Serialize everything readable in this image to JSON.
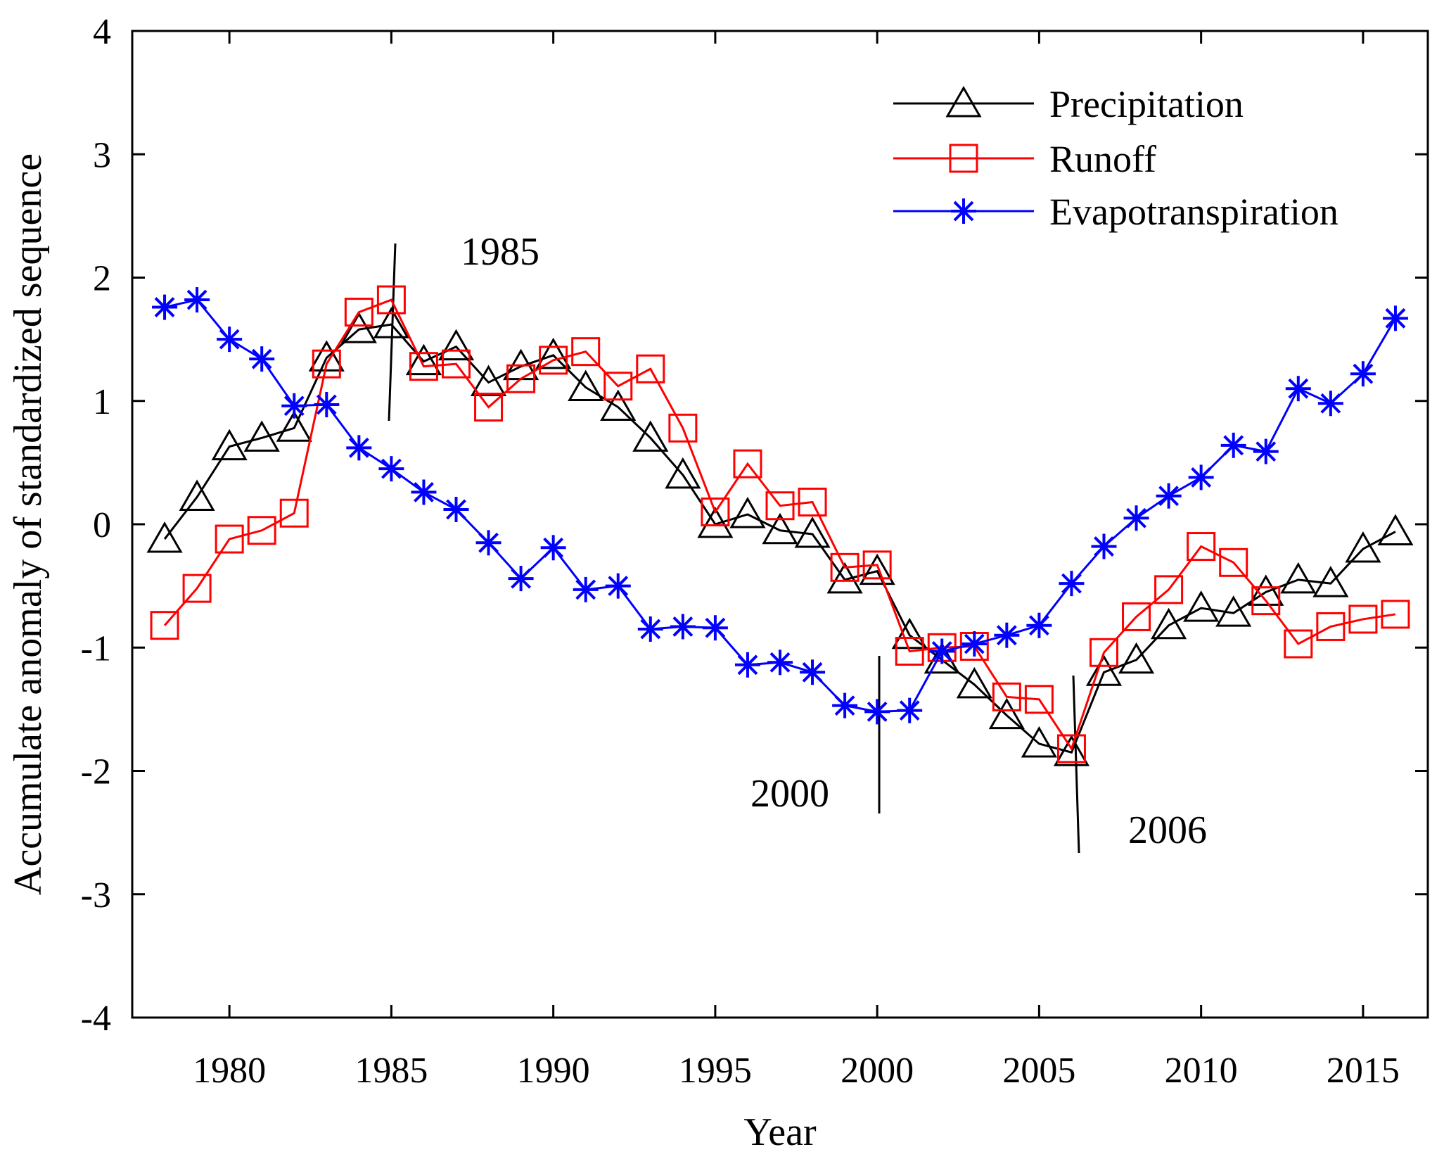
{
  "chart_data": {
    "type": "line",
    "title": "",
    "xlabel": "Year",
    "ylabel": "Accumulate anomaly of standardized sequence",
    "xlim": [
      1977,
      2017
    ],
    "ylim": [
      -4,
      4
    ],
    "xticks": [
      1980,
      1985,
      1990,
      1995,
      2000,
      2005,
      2010,
      2015
    ],
    "yticks": [
      4,
      3,
      2,
      1,
      0,
      -1,
      -2,
      -3,
      -4
    ],
    "xtick_labels": [
      "1980",
      "1985",
      "1990",
      "1995",
      "2000",
      "2005",
      "2010",
      "2015"
    ],
    "ytick_labels": [
      "4",
      "3",
      "2",
      "1",
      "0",
      "-1",
      "-2",
      "-3",
      "-4"
    ],
    "grid": false,
    "legend_position": "top-right",
    "x": [
      1978,
      1979,
      1980,
      1981,
      1982,
      1983,
      1984,
      1985,
      1986,
      1987,
      1988,
      1989,
      1990,
      1991,
      1992,
      1993,
      1994,
      1995,
      1996,
      1997,
      1998,
      1999,
      2000,
      2001,
      2002,
      2003,
      2004,
      2005,
      2006,
      2007,
      2008,
      2009,
      2010,
      2011,
      2012,
      2013,
      2014,
      2015,
      2016
    ],
    "series": [
      {
        "name": "Precipitation",
        "color": "#000000",
        "marker": "triangle",
        "values": [
          -0.12,
          0.22,
          0.63,
          0.7,
          0.78,
          1.35,
          1.58,
          1.62,
          1.32,
          1.44,
          1.15,
          1.28,
          1.37,
          1.11,
          0.95,
          0.7,
          0.4,
          0.0,
          0.08,
          -0.05,
          -0.08,
          -0.45,
          -0.38,
          -0.9,
          -1.1,
          -1.3,
          -1.55,
          -1.78,
          -1.85,
          -1.2,
          -1.1,
          -0.82,
          -0.68,
          -0.72,
          -0.55,
          -0.45,
          -0.48,
          -0.2,
          -0.06
        ]
      },
      {
        "name": "Runoff",
        "color": "#ff0000",
        "marker": "square",
        "values": [
          -0.82,
          -0.52,
          -0.12,
          -0.05,
          0.09,
          1.3,
          1.72,
          1.82,
          1.28,
          1.3,
          0.95,
          1.18,
          1.33,
          1.4,
          1.12,
          1.26,
          0.78,
          0.1,
          0.49,
          0.15,
          0.18,
          -0.35,
          -0.33,
          -1.03,
          -1.0,
          -0.99,
          -1.4,
          -1.42,
          -1.82,
          -1.04,
          -0.75,
          -0.53,
          -0.18,
          -0.31,
          -0.62,
          -0.97,
          -0.83,
          -0.77,
          -0.73
        ]
      },
      {
        "name": "Evapotranspiration",
        "color": "#0000ff",
        "marker": "asterisk",
        "values": [
          1.76,
          1.82,
          1.5,
          1.34,
          0.96,
          0.97,
          0.62,
          0.45,
          0.26,
          0.12,
          -0.15,
          -0.44,
          -0.19,
          -0.53,
          -0.5,
          -0.85,
          -0.83,
          -0.84,
          -1.14,
          -1.12,
          -1.2,
          -1.47,
          -1.52,
          -1.51,
          -1.03,
          -0.97,
          -0.9,
          -0.82,
          -0.48,
          -0.18,
          0.05,
          0.23,
          0.38,
          0.64,
          0.59,
          1.1,
          0.98,
          1.22,
          1.67
        ]
      }
    ],
    "annotations": [
      {
        "label": "1985",
        "year": 1985
      },
      {
        "label": "2000",
        "year": 2000
      },
      {
        "label": "2006",
        "year": 2006
      }
    ]
  }
}
